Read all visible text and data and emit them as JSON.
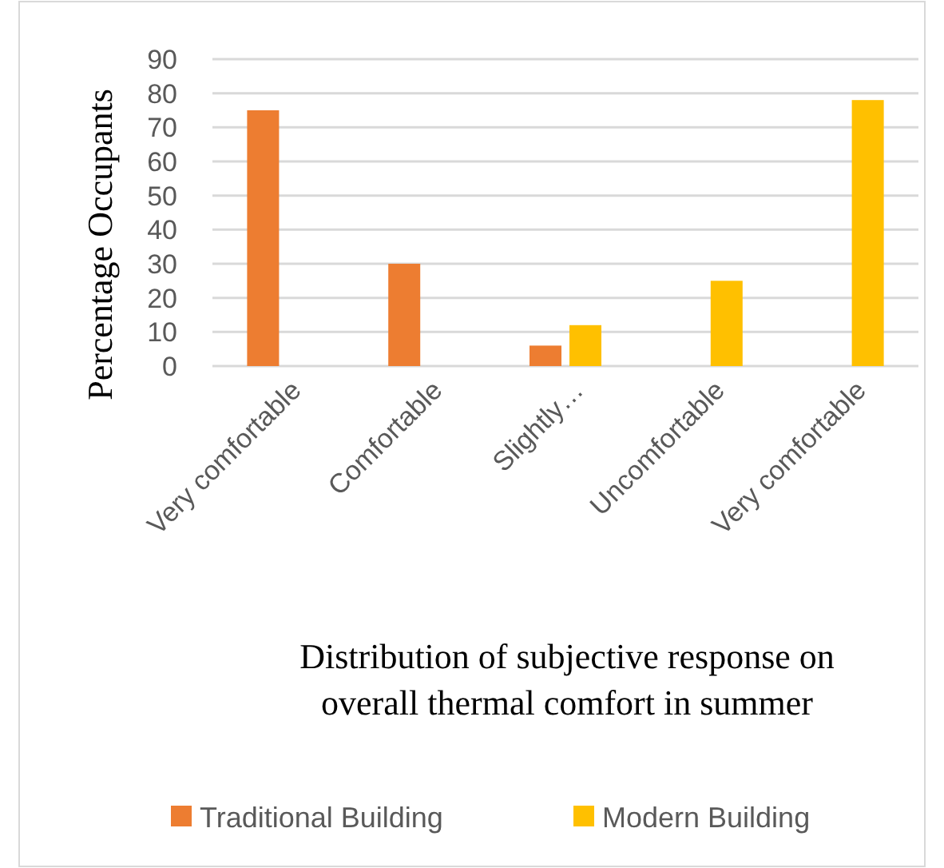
{
  "chart_data": {
    "type": "bar",
    "xlabel": "Distribution of subjective response on overall thermal comfort in summer",
    "ylabel": "Percentage Occupants",
    "categories": [
      "Very comfortable",
      "Comfortable",
      "Slightly…",
      "Uncomfortable",
      "Very comfortable"
    ],
    "series": [
      {
        "name": "Traditional Building",
        "color": "#ed7d31",
        "values": [
          75,
          30,
          6,
          null,
          null
        ]
      },
      {
        "name": "Modern Building",
        "color": "#ffc000",
        "values": [
          null,
          null,
          12,
          25,
          78
        ]
      }
    ],
    "ylim": [
      0,
      90
    ],
    "yticks": [
      0,
      10,
      20,
      30,
      40,
      50,
      60,
      70,
      80,
      90
    ],
    "grid": "y",
    "legend": "bottom"
  }
}
